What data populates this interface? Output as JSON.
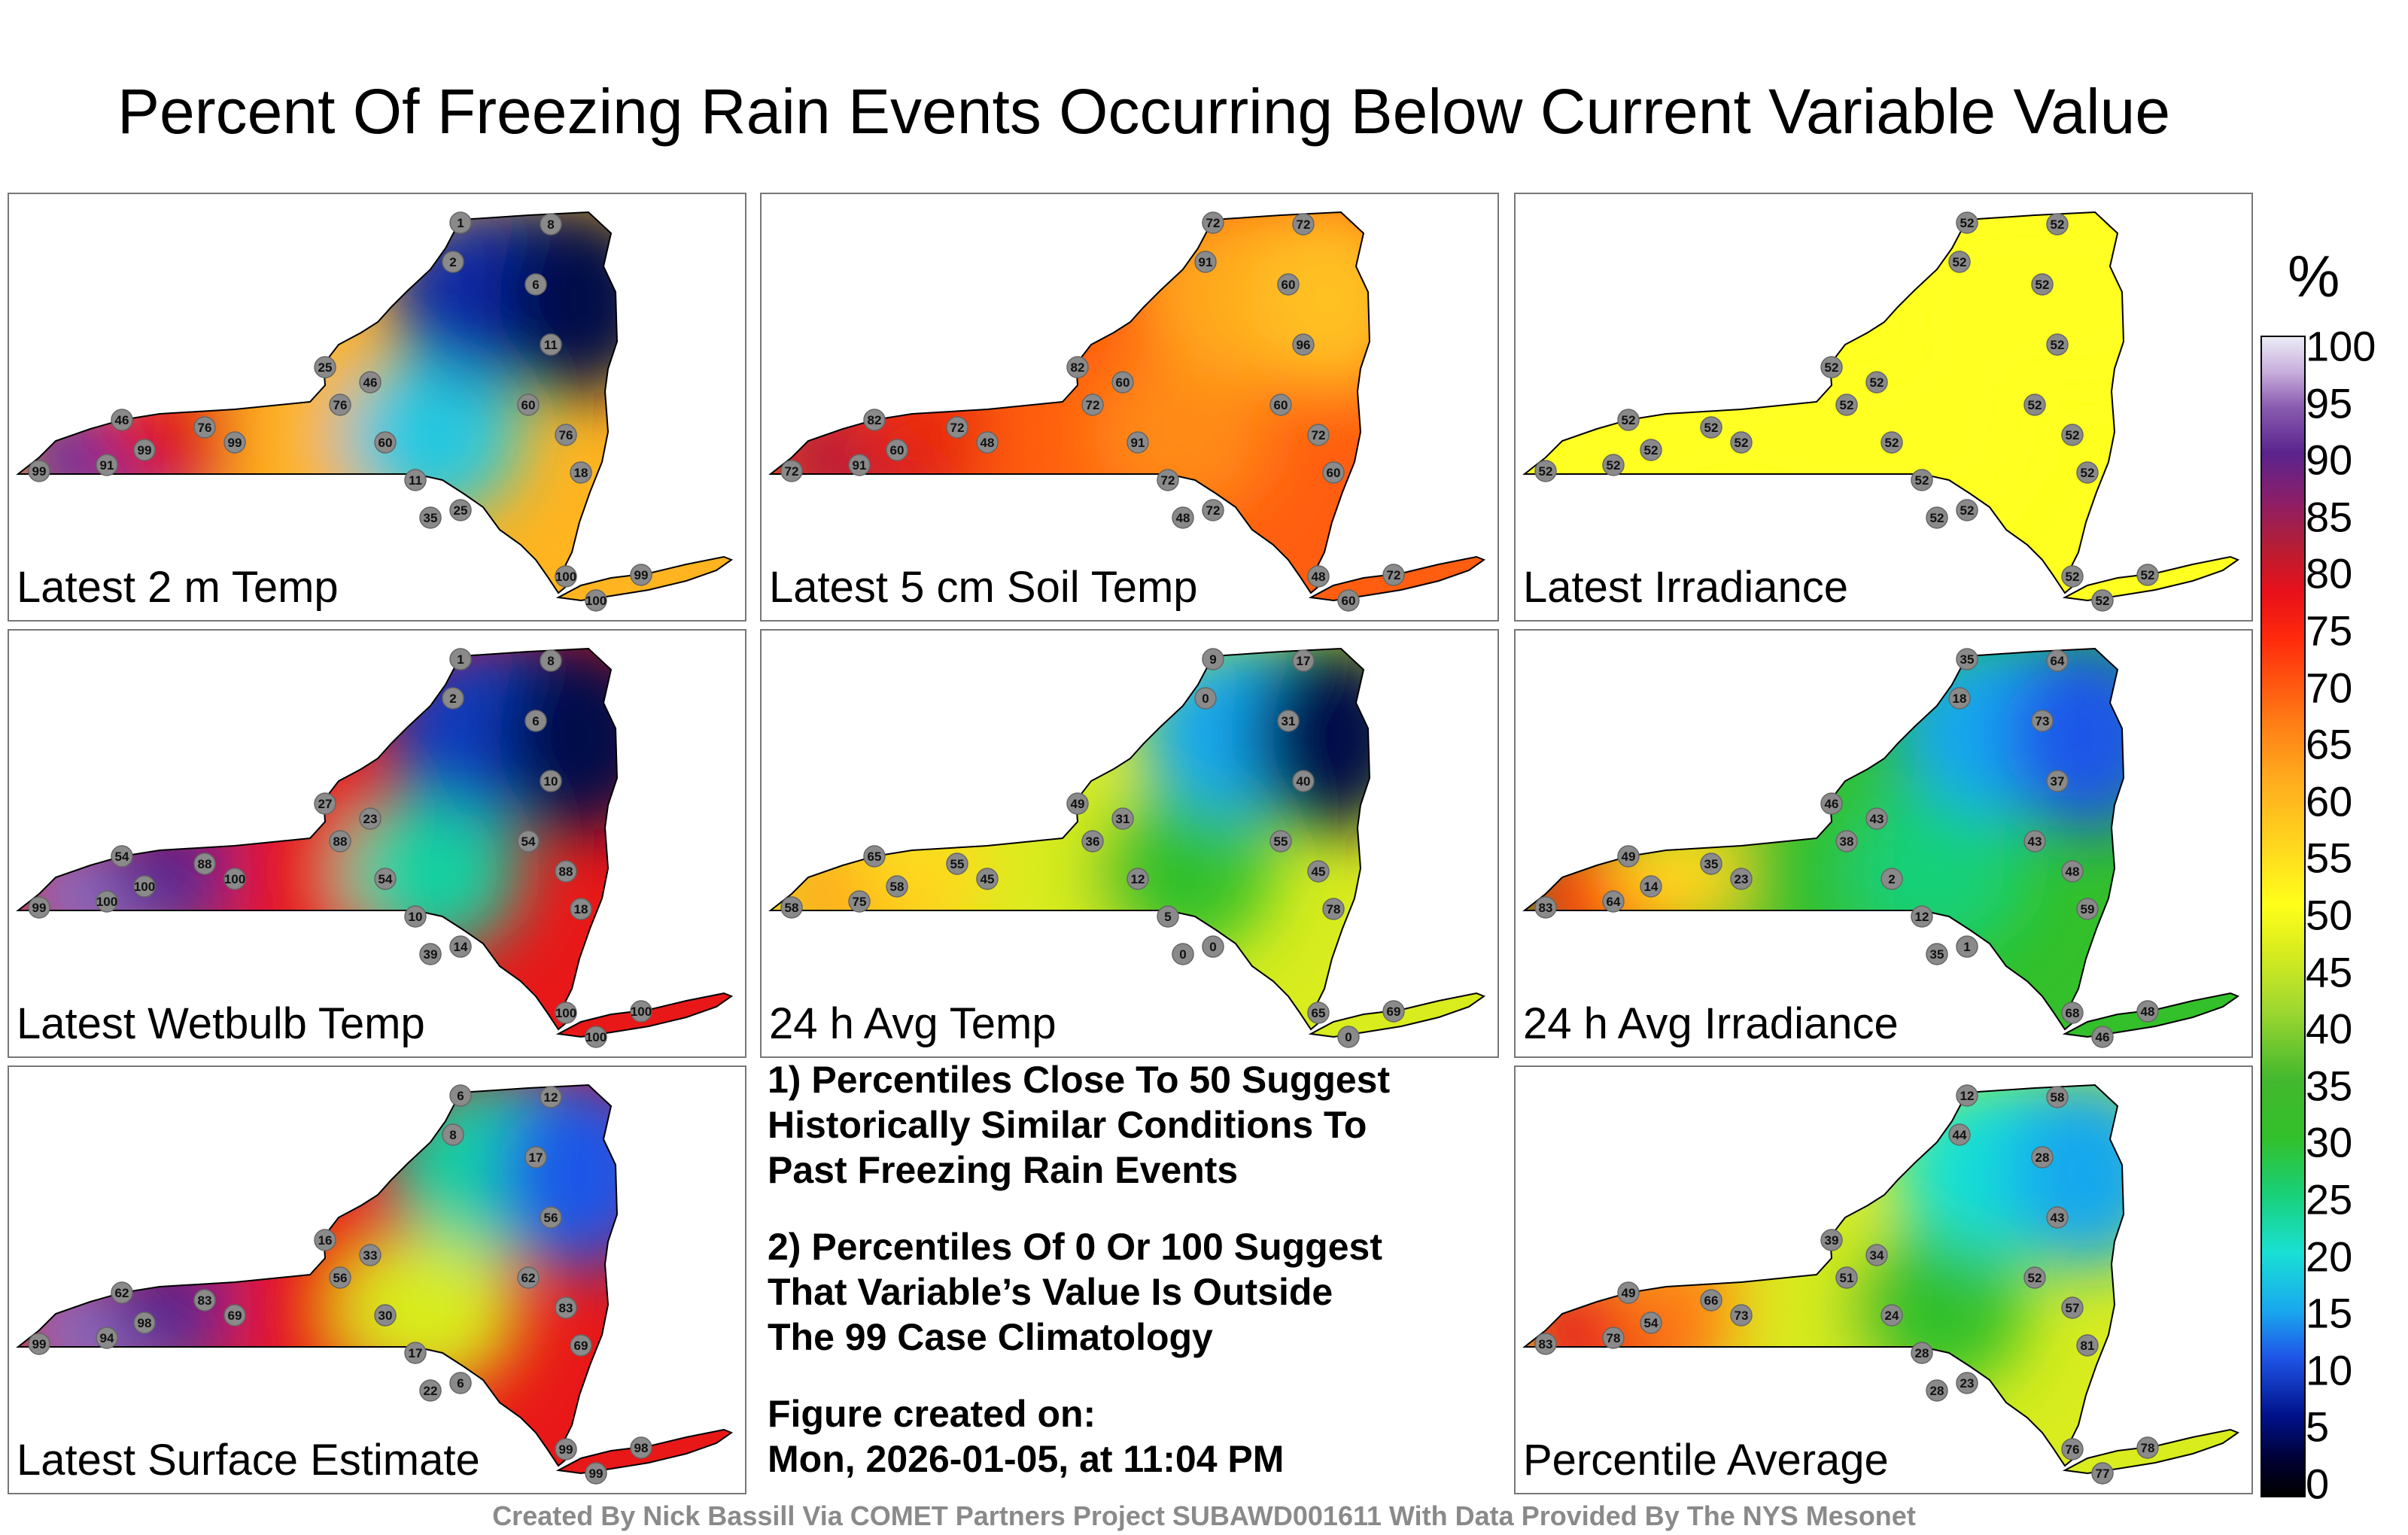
{
  "title": "Percent Of Freezing Rain Events Occurring Below Current Variable Value",
  "panels": [
    {
      "label": "Latest 2 m Temp",
      "colors": [
        "#6a2ea0",
        "#e01818",
        "#ffb420",
        "#28c8e0",
        "#0a2aa8",
        "#000a4a"
      ],
      "stations": [
        "99",
        "91",
        "46",
        "99",
        "76",
        "99",
        "25",
        "76",
        "46",
        "60",
        "11",
        "35",
        "25",
        "2",
        "1",
        "6",
        "8",
        "11",
        "60",
        "76",
        "18",
        "100",
        "99",
        "100"
      ]
    },
    {
      "label": "Latest 5 cm Soil Temp",
      "colors": [
        "#b81a3a",
        "#e82810",
        "#ff5e10",
        "#ff8a18",
        "#ffa81e",
        "#ffc020"
      ],
      "stations": [
        "72",
        "91",
        "82",
        "60",
        "72",
        "48",
        "82",
        "72",
        "60",
        "91",
        "72",
        "48",
        "72",
        "91",
        "72",
        "60",
        "72",
        "96",
        "60",
        "72",
        "60",
        "48",
        "72",
        "60"
      ]
    },
    {
      "label": "Latest Irradiance",
      "colors": [
        "#ffff20",
        "#ffff20",
        "#ffff20",
        "#ffff20",
        "#ffff20",
        "#ffff20"
      ],
      "stations": [
        "52",
        "52",
        "52",
        "52",
        "52",
        "52",
        "52",
        "52",
        "52",
        "52",
        "52",
        "52",
        "52",
        "52",
        "52",
        "52",
        "52",
        "52",
        "52",
        "52",
        "52",
        "52",
        "52",
        "52"
      ]
    },
    {
      "label": "Latest Wetbulb Temp",
      "colors": [
        "#8e6cc0",
        "#5a248e",
        "#e81818",
        "#19d0a0",
        "#0a3cc0",
        "#000a4a"
      ],
      "stations": [
        "99",
        "100",
        "54",
        "100",
        "88",
        "100",
        "27",
        "88",
        "23",
        "54",
        "10",
        "39",
        "14",
        "2",
        "1",
        "6",
        "8",
        "10",
        "54",
        "88",
        "18",
        "100",
        "100",
        "100"
      ]
    },
    {
      "label": "24 h Avg Temp",
      "colors": [
        "#ffaa1e",
        "#ffd81e",
        "#d8ec1e",
        "#33c02a",
        "#19a8ee",
        "#000a4a"
      ],
      "stations": [
        "58",
        "75",
        "65",
        "58",
        "55",
        "45",
        "49",
        "36",
        "31",
        "12",
        "5",
        "0",
        "0",
        "0",
        "9",
        "31",
        "17",
        "40",
        "55",
        "45",
        "78",
        "65",
        "69",
        "0"
      ]
    },
    {
      "label": "24 h Avg Irradiance",
      "colors": [
        "#ff2a0c",
        "#ffd81e",
        "#33c02a",
        "#19d078",
        "#19a8ee",
        "#1f56e8"
      ],
      "stations": [
        "83",
        "64",
        "49",
        "14",
        "35",
        "23",
        "46",
        "38",
        "43",
        "2",
        "12",
        "35",
        "1",
        "18",
        "35",
        "73",
        "64",
        "37",
        "43",
        "48",
        "59",
        "68",
        "48",
        "46"
      ]
    },
    {
      "label": "Latest Surface Estimate",
      "colors": [
        "#8e6cc0",
        "#5a248e",
        "#e81818",
        "#d8ec1e",
        "#19d0a0",
        "#1f56e8"
      ],
      "stations": [
        "99",
        "94",
        "62",
        "98",
        "83",
        "69",
        "16",
        "56",
        "33",
        "30",
        "17",
        "22",
        "6",
        "8",
        "6",
        "17",
        "12",
        "56",
        "62",
        "83",
        "69",
        "99",
        "98",
        "99"
      ]
    },
    {
      "label": "Percentile Average",
      "colors": [
        "#e8101a",
        "#ff7a14",
        "#d8ec1e",
        "#33c02a",
        "#19e0d4",
        "#19a8ee"
      ],
      "stations": [
        "83",
        "78",
        "49",
        "54",
        "66",
        "73",
        "39",
        "51",
        "34",
        "24",
        "28",
        "28",
        "23",
        "44",
        "12",
        "28",
        "58",
        "43",
        "52",
        "57",
        "81",
        "76",
        "78",
        "77"
      ]
    }
  ],
  "notes": [
    [
      "1) Percentiles Close To 50 Suggest",
      "Historically Similar Conditions To",
      "Past Freezing Rain Events"
    ],
    [
      "2) Percentiles Of 0 Or 100 Suggest",
      "That Variable’s Value Is Outside",
      "The 99 Case Climatology"
    ],
    [
      "Figure created on:",
      "Mon, 2026-01-05, at 11:04 PM"
    ]
  ],
  "colorbar": {
    "unit": "%",
    "ticks": [
      "100",
      "95",
      "90",
      "85",
      "80",
      "75",
      "70",
      "65",
      "60",
      "55",
      "50",
      "45",
      "40",
      "35",
      "30",
      "25",
      "20",
      "15",
      "10",
      "5",
      "0"
    ]
  },
  "credit": "Created By Nick Bassill Via COMET Partners Project SUBAWD001611 With Data Provided By The NYS Mesonet"
}
